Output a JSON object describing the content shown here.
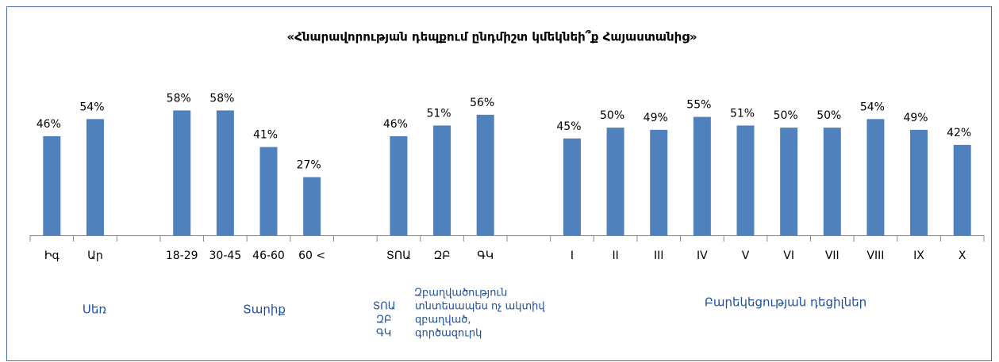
{
  "chart_data": {
    "type": "bar",
    "title": "«Հնարավորության դեպքում ընդմիշտ կմեկնեի՞ք Հայաստանից»",
    "categories": [
      "Իգ",
      "Ար",
      null,
      "18-29",
      "30-45",
      "46-60",
      "60 <",
      null,
      "ՏՈԱ",
      "ԶԲ",
      "ԳԿ",
      null,
      "I",
      "II",
      "III",
      "IV",
      "V",
      "VI",
      "VII",
      "VIII",
      "IX",
      "X"
    ],
    "values": [
      46,
      54,
      null,
      58,
      58,
      41,
      27,
      null,
      46,
      51,
      56,
      null,
      45,
      50,
      49,
      55,
      51,
      50,
      50,
      54,
      49,
      42
    ],
    "value_labels": [
      "46%",
      "54%",
      null,
      "58%",
      "58%",
      "41%",
      "27%",
      null,
      "46%",
      "51%",
      "56%",
      null,
      "45%",
      "50%",
      "49%",
      "55%",
      "51%",
      "50%",
      "50%",
      "54%",
      "49%",
      "42%"
    ],
    "color": "#4f81bd",
    "ylim": [
      0,
      60
    ],
    "group_labels": [
      "Սեռ",
      "Տարիք",
      "Բարեկեցության դեցիլներ"
    ],
    "employment_legend": {
      "title": "Զբաղվածություն",
      "items": [
        {
          "code": "ՏՈԱ",
          "text": "տնտեսապես ոչ ակտիվ"
        },
        {
          "code": "ԶԲ",
          "text": "զբաղված,"
        },
        {
          "code": "ԳԿ",
          "text": "գործազուրկ"
        }
      ]
    }
  }
}
